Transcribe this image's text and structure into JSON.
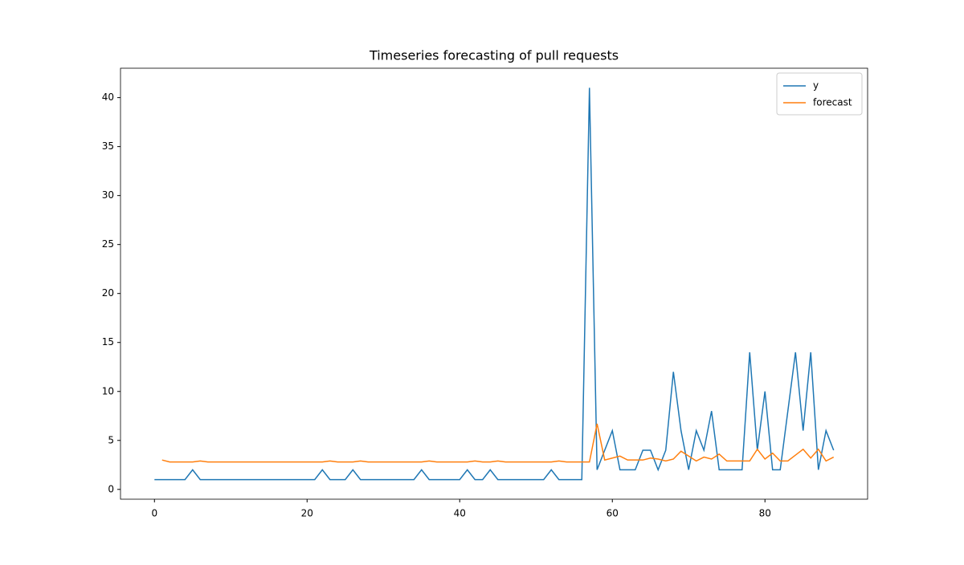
{
  "chart_data": {
    "type": "line",
    "title": "Timeseries forecasting of pull requests",
    "x": [
      0,
      1,
      2,
      3,
      4,
      5,
      6,
      7,
      8,
      9,
      10,
      11,
      12,
      13,
      14,
      15,
      16,
      17,
      18,
      19,
      20,
      21,
      22,
      23,
      24,
      25,
      26,
      27,
      28,
      29,
      30,
      31,
      32,
      33,
      34,
      35,
      36,
      37,
      38,
      39,
      40,
      41,
      42,
      43,
      44,
      45,
      46,
      47,
      48,
      49,
      50,
      51,
      52,
      53,
      54,
      55,
      56,
      57,
      58,
      59,
      60,
      61,
      62,
      63,
      64,
      65,
      66,
      67,
      68,
      69,
      70,
      71,
      72,
      73,
      74,
      75,
      76,
      77,
      78,
      79,
      80,
      81,
      82,
      83,
      84,
      85,
      86,
      87,
      88,
      89
    ],
    "series": [
      {
        "name": "y",
        "color": "#1f77b4",
        "values": [
          1,
          1,
          1,
          1,
          1,
          2,
          1,
          1,
          1,
          1,
          1,
          1,
          1,
          1,
          1,
          1,
          1,
          1,
          1,
          1,
          1,
          1,
          2,
          1,
          1,
          1,
          2,
          1,
          1,
          1,
          1,
          1,
          1,
          1,
          1,
          2,
          1,
          1,
          1,
          1,
          1,
          2,
          1,
          1,
          2,
          1,
          1,
          1,
          1,
          1,
          1,
          1,
          2,
          1,
          1,
          1,
          1,
          41,
          2,
          4,
          6,
          2,
          2,
          2,
          4,
          4,
          2,
          4,
          12,
          6,
          2,
          6,
          4,
          8,
          2,
          2,
          2,
          2,
          14,
          4,
          10,
          2,
          2,
          8,
          14,
          6,
          14,
          2,
          6,
          4
        ]
      },
      {
        "name": "forecast",
        "color": "#ff7f0e",
        "values": [
          null,
          3.0,
          2.8,
          2.8,
          2.8,
          2.8,
          2.9,
          2.8,
          2.8,
          2.8,
          2.8,
          2.8,
          2.8,
          2.8,
          2.8,
          2.8,
          2.8,
          2.8,
          2.8,
          2.8,
          2.8,
          2.8,
          2.8,
          2.9,
          2.8,
          2.8,
          2.8,
          2.9,
          2.8,
          2.8,
          2.8,
          2.8,
          2.8,
          2.8,
          2.8,
          2.8,
          2.9,
          2.8,
          2.8,
          2.8,
          2.8,
          2.8,
          2.9,
          2.8,
          2.8,
          2.9,
          2.8,
          2.8,
          2.8,
          2.8,
          2.8,
          2.8,
          2.8,
          2.9,
          2.8,
          2.8,
          2.8,
          2.8,
          6.7,
          3.0,
          3.2,
          3.4,
          3.0,
          3.0,
          3.0,
          3.2,
          3.1,
          2.9,
          3.1,
          3.9,
          3.4,
          2.9,
          3.3,
          3.1,
          3.6,
          2.9,
          2.9,
          2.9,
          2.9,
          4.1,
          3.1,
          3.7,
          2.9,
          2.9,
          3.5,
          4.1,
          3.2,
          4.1,
          2.9,
          3.3
        ]
      }
    ],
    "xlim": [
      -4.45,
      93.45
    ],
    "xticks": [
      0,
      20,
      40,
      60,
      80
    ],
    "ylim": [
      -1,
      43
    ],
    "yticks": [
      0,
      5,
      10,
      15,
      20,
      25,
      30,
      35,
      40
    ],
    "legend": "upper right"
  }
}
